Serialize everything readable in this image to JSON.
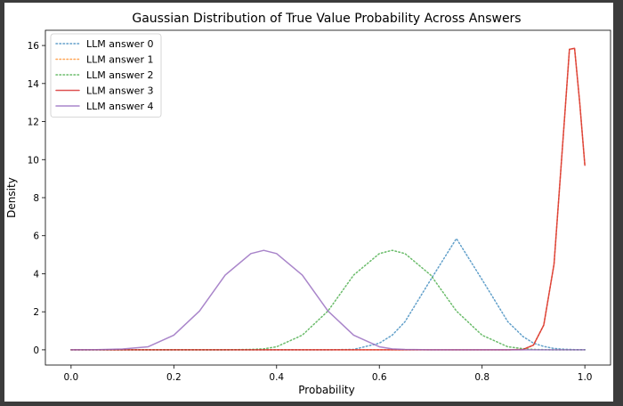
{
  "chart_data": {
    "type": "line",
    "title": "Gaussian Distribution of True Value Probability Across Answers",
    "xlabel": "Probability",
    "ylabel": "Density",
    "xlim": [
      -0.05,
      1.05
    ],
    "ylim": [
      -0.8,
      16.8
    ],
    "xticks": [
      0.0,
      0.2,
      0.4,
      0.6,
      0.8,
      1.0
    ],
    "xtick_labels": [
      "0.0",
      "0.2",
      "0.4",
      "0.6",
      "0.8",
      "1.0"
    ],
    "yticks": [
      0,
      2,
      4,
      6,
      8,
      10,
      12,
      14,
      16
    ],
    "ytick_labels": [
      "0",
      "2",
      "4",
      "6",
      "8",
      "10",
      "12",
      "14",
      "16"
    ],
    "grid": false,
    "legend_position": "upper-left",
    "x": [
      0.0,
      0.05,
      0.1,
      0.15,
      0.2,
      0.25,
      0.3,
      0.35,
      0.375,
      0.4,
      0.45,
      0.5,
      0.55,
      0.6,
      0.625,
      0.65,
      0.7,
      0.75,
      0.8,
      0.85,
      0.88,
      0.9,
      0.92,
      0.94,
      0.96,
      0.97,
      0.98,
      0.99,
      1.0
    ],
    "series": [
      {
        "name": "LLM answer 0",
        "color": "#1f77b4",
        "style": "dotted",
        "values": [
          0,
          0,
          0,
          0,
          0,
          0,
          0,
          0,
          0,
          0,
          0,
          0,
          0.02,
          0.35,
          0.77,
          1.48,
          3.69,
          5.85,
          3.69,
          1.48,
          0.69,
          0.35,
          0.18,
          0.07,
          0.03,
          0.02,
          0.01,
          0.01,
          0.01
        ]
      },
      {
        "name": "LLM answer 1",
        "color": "#ff7f0e",
        "style": "dotted",
        "values": [
          0,
          0,
          0,
          0,
          0,
          0,
          0,
          0,
          0,
          0,
          0,
          0,
          0,
          0,
          0,
          0,
          0,
          0,
          0,
          0,
          0.02,
          0.25,
          1.3,
          4.5,
          12.0,
          15.8,
          15.85,
          13.0,
          9.7
        ]
      },
      {
        "name": "LLM answer 2",
        "color": "#2ca02c",
        "style": "dotted",
        "values": [
          0,
          0,
          0,
          0,
          0,
          0,
          0,
          0.02,
          0.05,
          0.16,
          0.77,
          2.04,
          3.93,
          5.06,
          5.23,
          5.06,
          3.93,
          2.04,
          0.77,
          0.16,
          0.06,
          0.02,
          0.01,
          0,
          0,
          0,
          0,
          0,
          0
        ]
      },
      {
        "name": "LLM answer 3",
        "color": "#d62728",
        "style": "solid",
        "values": [
          0,
          0,
          0,
          0,
          0,
          0,
          0,
          0,
          0,
          0,
          0,
          0,
          0,
          0,
          0,
          0,
          0,
          0,
          0,
          0,
          0.02,
          0.25,
          1.3,
          4.5,
          12.0,
          15.8,
          15.85,
          13.0,
          9.7
        ]
      },
      {
        "name": "LLM answer 4",
        "color": "#9467bd",
        "style": "solid",
        "values": [
          0,
          0.01,
          0.04,
          0.16,
          0.77,
          2.04,
          3.93,
          5.06,
          5.23,
          5.06,
          3.93,
          2.04,
          0.77,
          0.16,
          0.05,
          0.02,
          0,
          0,
          0,
          0,
          0,
          0,
          0,
          0,
          0,
          0,
          0,
          0,
          0
        ]
      }
    ]
  }
}
